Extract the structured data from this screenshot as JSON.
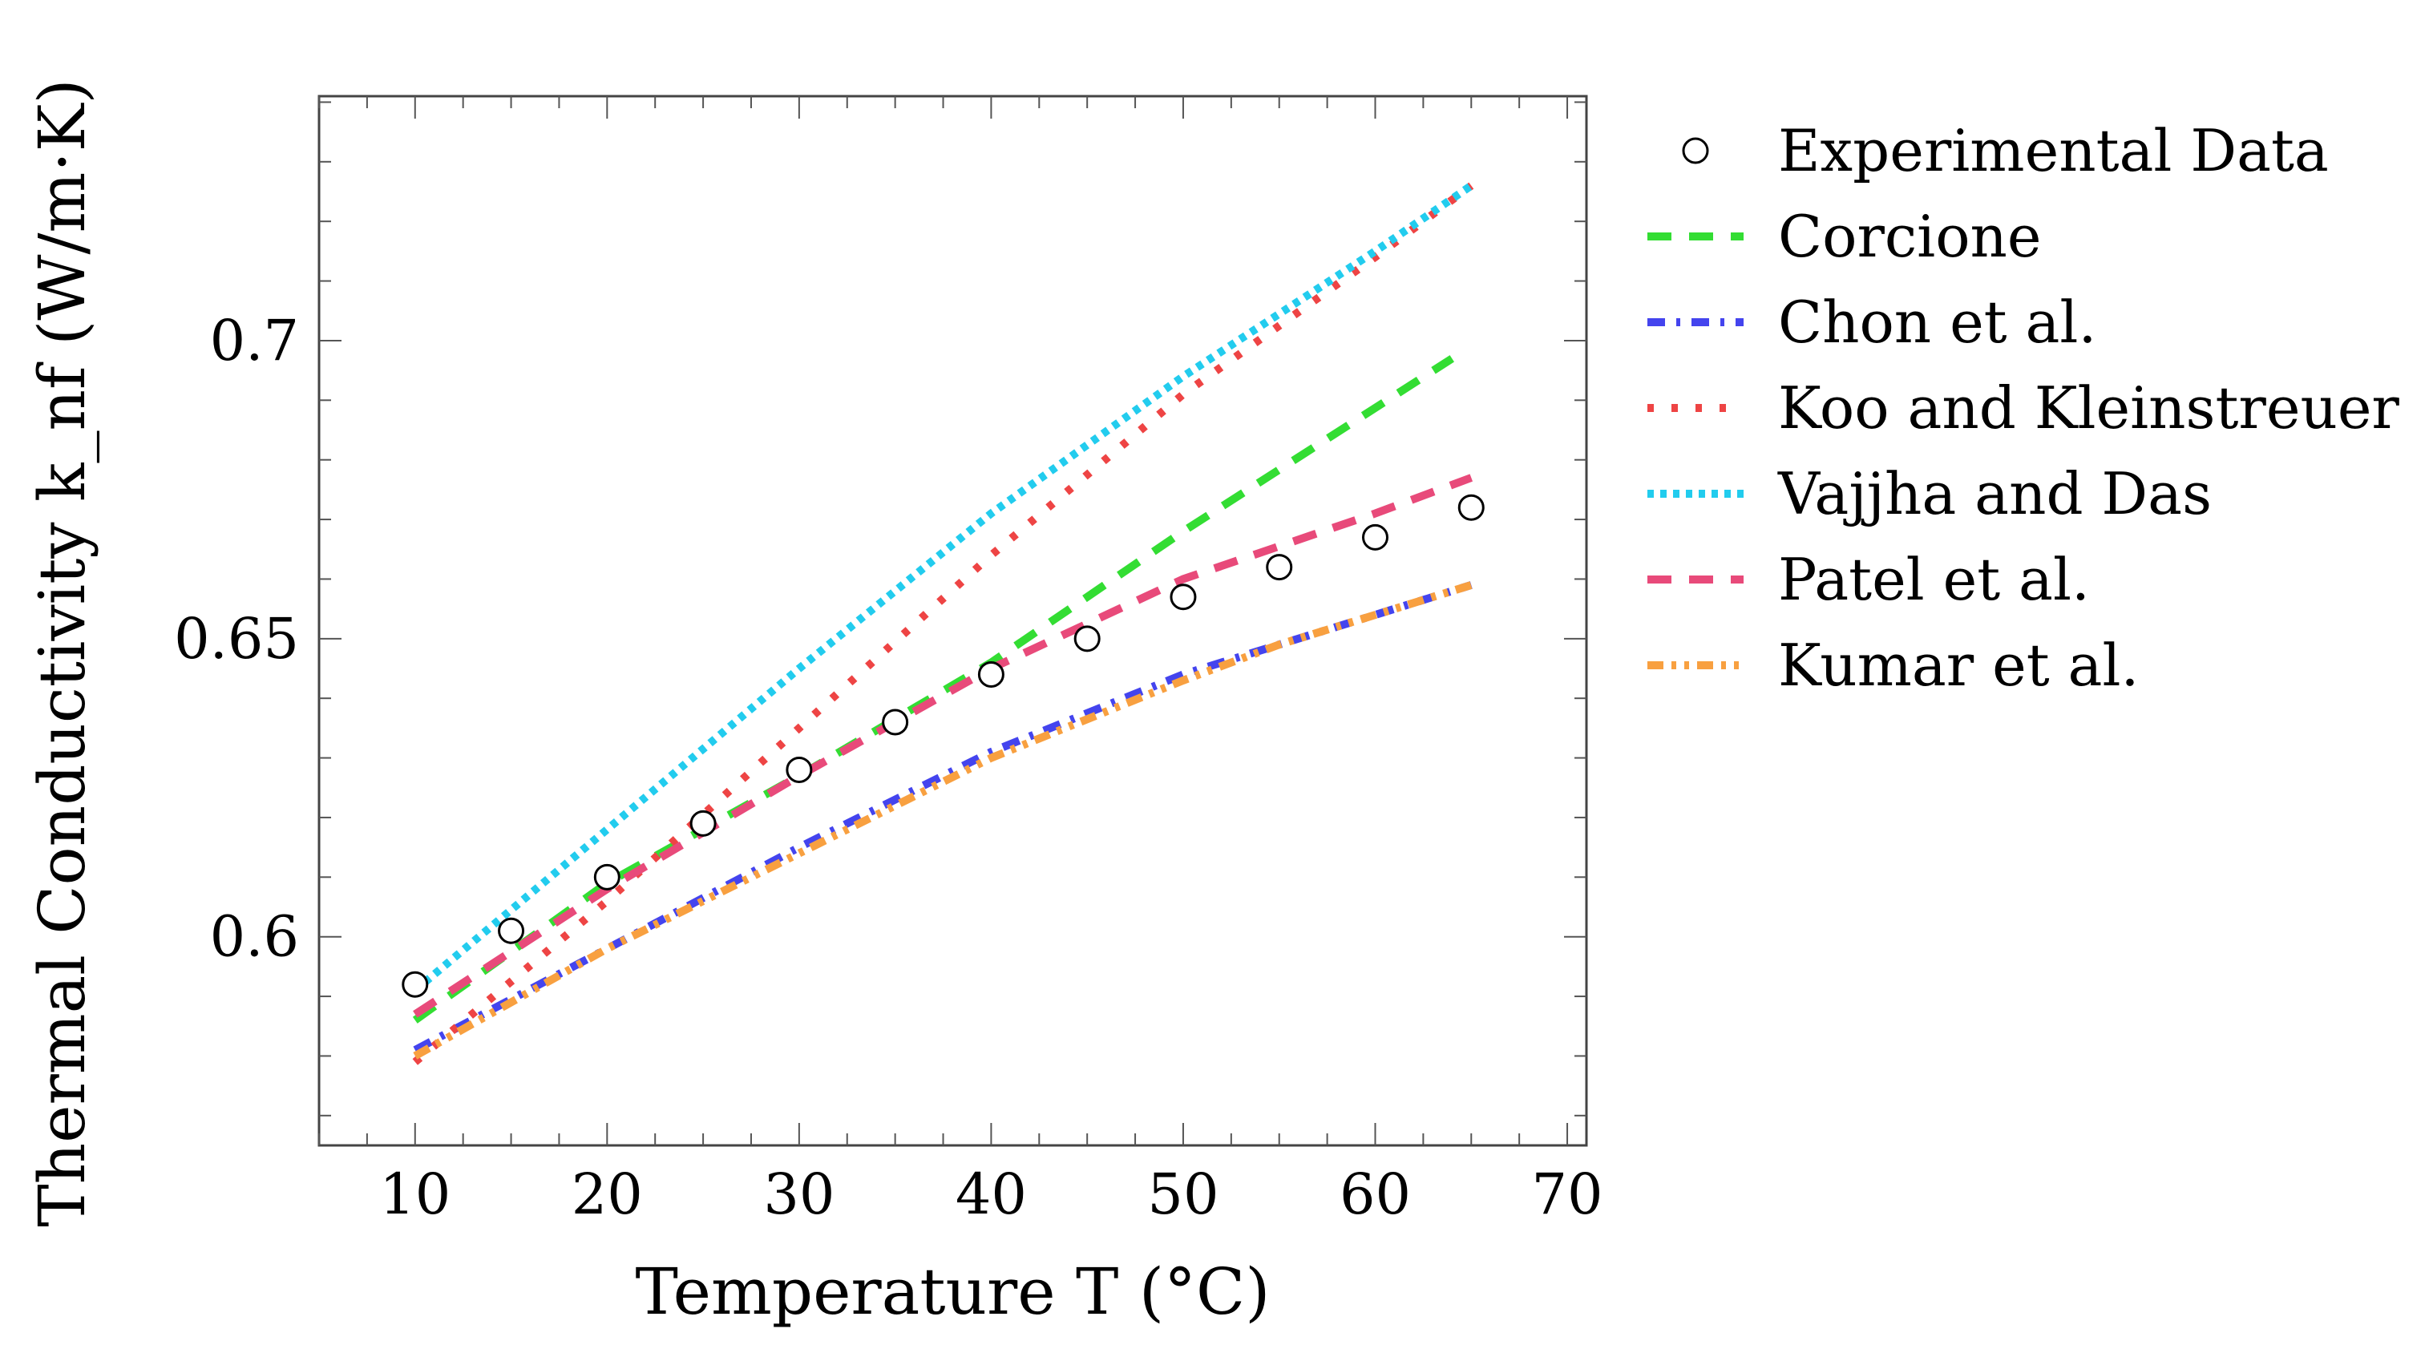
{
  "chart_data": {
    "type": "line",
    "title": "",
    "xlabel": "Temperature T (°C)",
    "ylabel": "Thermal Conductivity k_nf (W/m·K)",
    "xlim": [
      5,
      71
    ],
    "ylim": [
      0.565,
      0.741
    ],
    "xticks": [
      10,
      20,
      30,
      40,
      50,
      60,
      70
    ],
    "xtick_labels": [
      "10",
      "20",
      "30",
      "40",
      "50",
      "60",
      "70"
    ],
    "yticks": [
      0.6,
      0.65,
      0.7
    ],
    "ytick_labels": [
      "0.6",
      "0.65",
      "0.7"
    ],
    "x_minor_step": 2.5,
    "y_minor_step": 0.01,
    "grid": false,
    "legend_position": "outside-right",
    "series": [
      {
        "name": "Experimental Data",
        "kind": "marker",
        "color": "#000000",
        "x": [
          10,
          15,
          20,
          25,
          30,
          35,
          40,
          45,
          50,
          55,
          60,
          65
        ],
        "y": [
          0.592,
          0.601,
          0.61,
          0.619,
          0.628,
          0.636,
          0.644,
          0.65,
          0.657,
          0.662,
          0.667,
          0.672
        ]
      },
      {
        "name": "Corcione",
        "kind": "line",
        "dash": "dashed",
        "color": "#33dd33",
        "x": [
          10,
          20,
          30,
          40,
          50,
          64
        ],
        "y": [
          0.586,
          0.609,
          0.627,
          0.646,
          0.668,
          0.697
        ]
      },
      {
        "name": "Chon et al.",
        "kind": "line",
        "dash": "dashdot",
        "color": "#4444ee",
        "x": [
          10,
          20,
          30,
          40,
          50,
          55,
          60,
          65
        ],
        "y": [
          0.581,
          0.598,
          0.615,
          0.631,
          0.644,
          0.649,
          0.654,
          0.659
        ]
      },
      {
        "name": "Koo and Kleinstreuer",
        "kind": "line",
        "dash": "loose-dotted",
        "color": "#ee4444",
        "x": [
          10,
          20,
          30,
          40,
          50,
          60,
          65
        ],
        "y": [
          0.579,
          0.606,
          0.635,
          0.664,
          0.691,
          0.714,
          0.726
        ]
      },
      {
        "name": "Vajjha and Das",
        "kind": "line",
        "dash": "dotted",
        "color": "#22ccee",
        "x": [
          10,
          20,
          30,
          40,
          50,
          60,
          65
        ],
        "y": [
          0.591,
          0.618,
          0.645,
          0.671,
          0.694,
          0.715,
          0.726
        ]
      },
      {
        "name": "Patel et al.",
        "kind": "line",
        "dash": "dashed",
        "color": "#e84a7a",
        "x": [
          10,
          20,
          30,
          40,
          50,
          60,
          65
        ],
        "y": [
          0.587,
          0.608,
          0.627,
          0.645,
          0.66,
          0.671,
          0.677
        ]
      },
      {
        "name": "Kumar et al.",
        "kind": "line",
        "dash": "dashdotdot",
        "color": "#f8a040",
        "x": [
          10,
          20,
          30,
          40,
          50,
          55,
          60,
          65
        ],
        "y": [
          0.58,
          0.598,
          0.614,
          0.63,
          0.643,
          0.649,
          0.654,
          0.659
        ]
      }
    ]
  }
}
